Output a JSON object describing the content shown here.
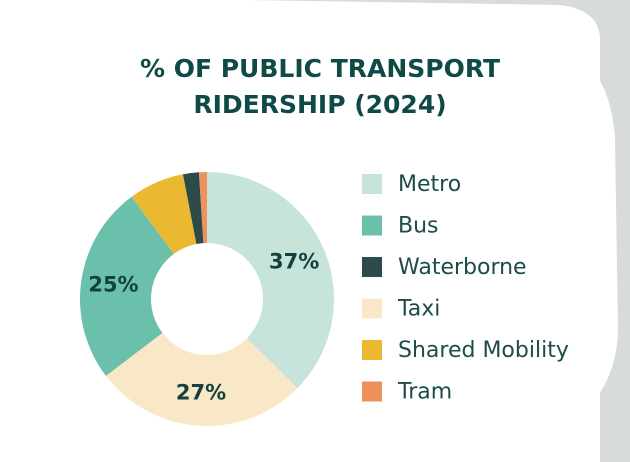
{
  "chart_data": {
    "type": "donut",
    "title": "% OF PUBLIC TRANSPORT RIDERSHIP (2024)",
    "categories": [
      "Metro",
      "Bus",
      "Waterborne",
      "Taxi",
      "Shared Mobility",
      "Tram"
    ],
    "values": [
      37,
      25,
      2,
      27,
      7,
      1
    ],
    "value_labels": [
      "37%",
      "25%",
      null,
      "27%",
      null,
      null
    ],
    "colors": [
      "#c6e4da",
      "#6bc0ab",
      "#2c4b4a",
      "#f8e8c8",
      "#ebb832",
      "#ef915a"
    ],
    "legend": "right"
  }
}
